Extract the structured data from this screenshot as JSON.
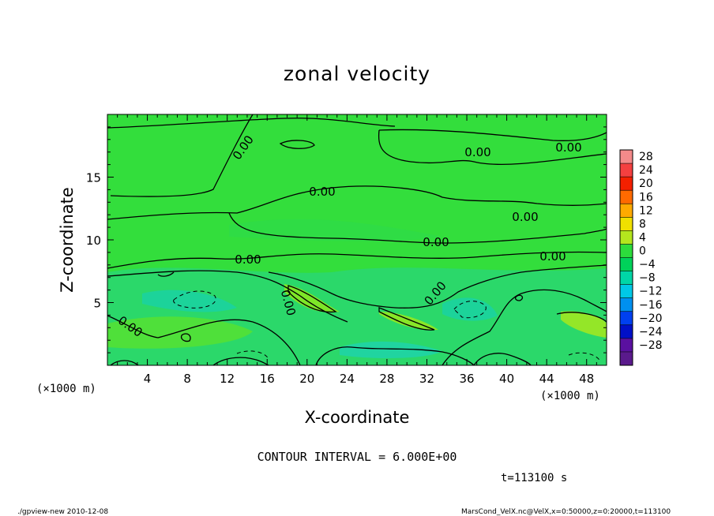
{
  "chart_data": {
    "type": "contour",
    "title": "zonal velocity",
    "xlabel": "X-coordinate",
    "ylabel": "Z-coordinate",
    "x_unit": "(×1000 m)",
    "y_unit": "(×1000 m)",
    "xlim": [
      0,
      50
    ],
    "ylim": [
      0,
      20
    ],
    "x_ticks": [
      4,
      8,
      12,
      16,
      20,
      24,
      28,
      32,
      36,
      40,
      44,
      48
    ],
    "y_ticks": [
      5,
      10,
      15
    ],
    "colorbar": {
      "levels": [
        28,
        24,
        20,
        16,
        12,
        8,
        4,
        0,
        -4,
        -8,
        -12,
        -16,
        -20,
        -24,
        -28
      ],
      "labels": [
        "28",
        "24",
        "20",
        "16",
        "12",
        "8",
        "4",
        "0",
        "−4",
        "−8",
        "−12",
        "−16",
        "−20",
        "−24",
        "−28"
      ],
      "colors": [
        "#f48a8a",
        "#f44040",
        "#f42000",
        "#ff6a00",
        "#ffaa00",
        "#f0e000",
        "#b4e61e",
        "#2ddc3c",
        "#00d25a",
        "#00d6a6",
        "#00c8e6",
        "#0090f0",
        "#0040f0",
        "#0010c8",
        "#5a10a0",
        "#5a1a8c"
      ]
    },
    "contour_label": "0.00",
    "contour_interval_text": "CONTOUR INTERVAL = 6.000E+00",
    "time_text": "t=113100 s"
  },
  "footer": {
    "left": "./gpview-new  2010-12-08",
    "right": "MarsCond_VelX.nc@VelX,x=0:50000,z=0:20000,t=113100"
  }
}
